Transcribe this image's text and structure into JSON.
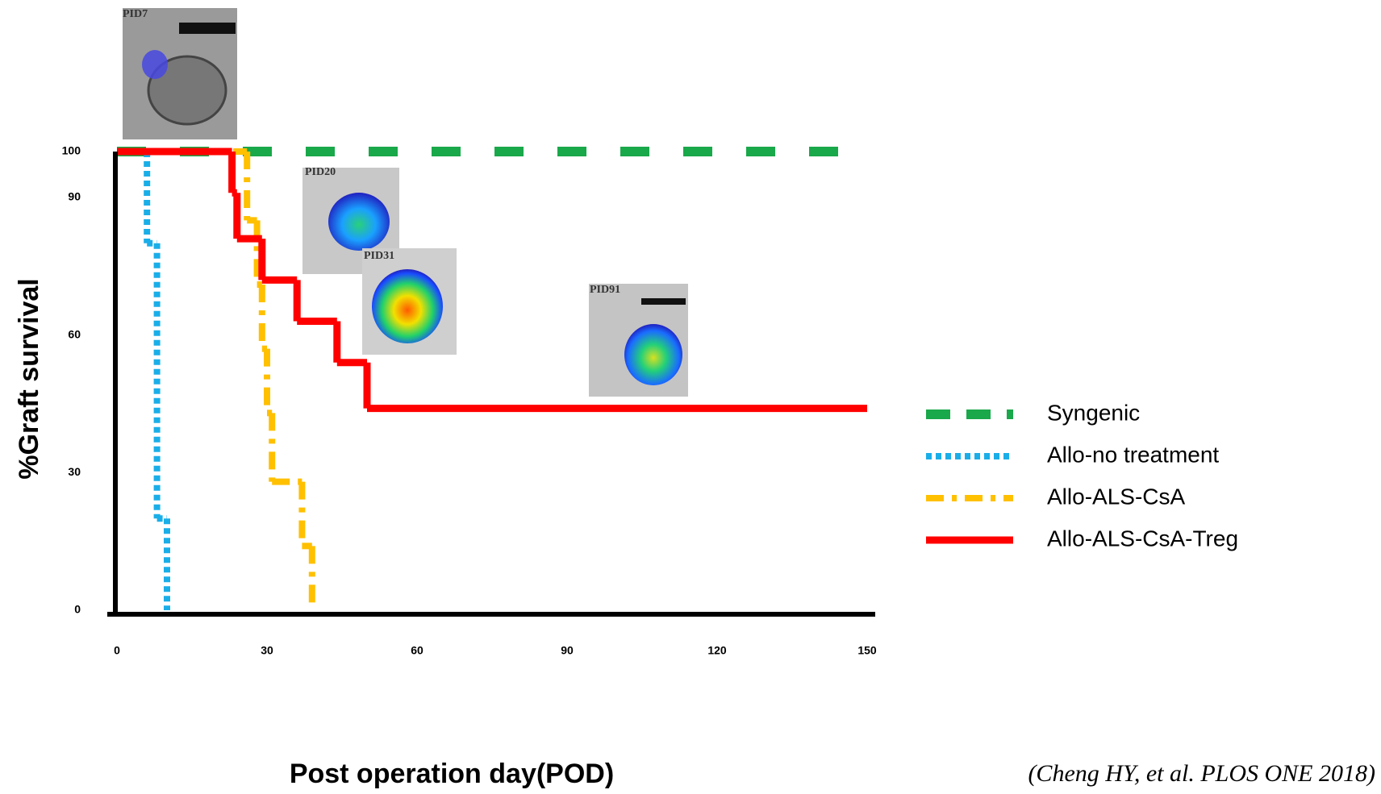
{
  "chart_data": {
    "type": "line",
    "step": true,
    "x_label": "Post operation day(POD)",
    "y_label": "%Graft survival",
    "xlim": [
      0,
      150
    ],
    "xticks": [
      0,
      30,
      60,
      90,
      120,
      150
    ],
    "ylim": [
      0,
      100
    ],
    "yticks": [
      0,
      30,
      60,
      90,
      100
    ],
    "grid": false,
    "legend": "right",
    "annotations": [
      "PID7",
      "PID20",
      "PID31",
      "PID91"
    ],
    "citation": "(Cheng HY, et al. PLOS ONE 2018)",
    "series": [
      {
        "name": "Syngenic",
        "color": "#19a84a",
        "style": "dashed",
        "x": [
          0,
          145
        ],
        "values": [
          100,
          100
        ]
      },
      {
        "name": "Allo-no treatment",
        "color": "#1aaee8",
        "style": "dotted",
        "x": [
          0,
          6,
          8,
          10
        ],
        "values": [
          100,
          80,
          20,
          0
        ]
      },
      {
        "name": "Allo-ALS-CsA",
        "color": "#ffc000",
        "style": "dashdot",
        "x": [
          0,
          26,
          28,
          29,
          30,
          31,
          37,
          39
        ],
        "values": [
          100,
          85,
          71,
          57,
          43,
          28,
          14,
          0
        ]
      },
      {
        "name": "Allo-ALS-CsA-Treg",
        "color": "#ff0000",
        "style": "solid",
        "x": [
          0,
          23,
          24,
          29,
          36,
          44,
          50,
          150
        ],
        "values": [
          100,
          91,
          81,
          72,
          63,
          54,
          44,
          44
        ]
      }
    ]
  }
}
